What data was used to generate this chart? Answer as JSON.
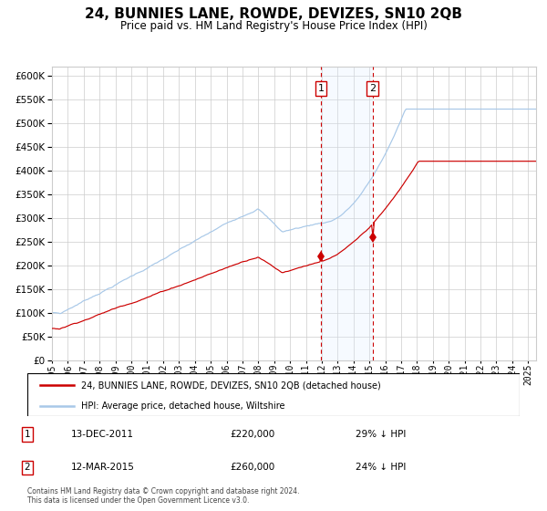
{
  "title": "24, BUNNIES LANE, ROWDE, DEVIZES, SN10 2QB",
  "subtitle": "Price paid vs. HM Land Registry's House Price Index (HPI)",
  "hpi_color": "#a8c8e8",
  "price_color": "#cc0000",
  "marker_color": "#cc0000",
  "vline_color": "#cc0000",
  "shade_color": "#ddeeff",
  "grid_color": "#cccccc",
  "sale1_date": 2011.95,
  "sale1_price": 220000,
  "sale2_date": 2015.19,
  "sale2_price": 260000,
  "ylim": [
    0,
    620000
  ],
  "xlim": [
    1995,
    2025.5
  ],
  "yticks": [
    0,
    50000,
    100000,
    150000,
    200000,
    250000,
    300000,
    350000,
    400000,
    450000,
    500000,
    550000,
    600000
  ],
  "xtick_years": [
    1995,
    1996,
    1997,
    1998,
    1999,
    2000,
    2001,
    2002,
    2003,
    2004,
    2005,
    2006,
    2007,
    2008,
    2009,
    2010,
    2011,
    2012,
    2013,
    2014,
    2015,
    2016,
    2017,
    2018,
    2019,
    2020,
    2021,
    2022,
    2023,
    2024,
    2025
  ],
  "legend_label_red": "24, BUNNIES LANE, ROWDE, DEVIZES, SN10 2QB (detached house)",
  "legend_label_blue": "HPI: Average price, detached house, Wiltshire",
  "table_row1": [
    "1",
    "13-DEC-2011",
    "£220,000",
    "29% ↓ HPI"
  ],
  "table_row2": [
    "2",
    "12-MAR-2015",
    "£260,000",
    "24% ↓ HPI"
  ],
  "footer": "Contains HM Land Registry data © Crown copyright and database right 2024.\nThis data is licensed under the Open Government Licence v3.0."
}
